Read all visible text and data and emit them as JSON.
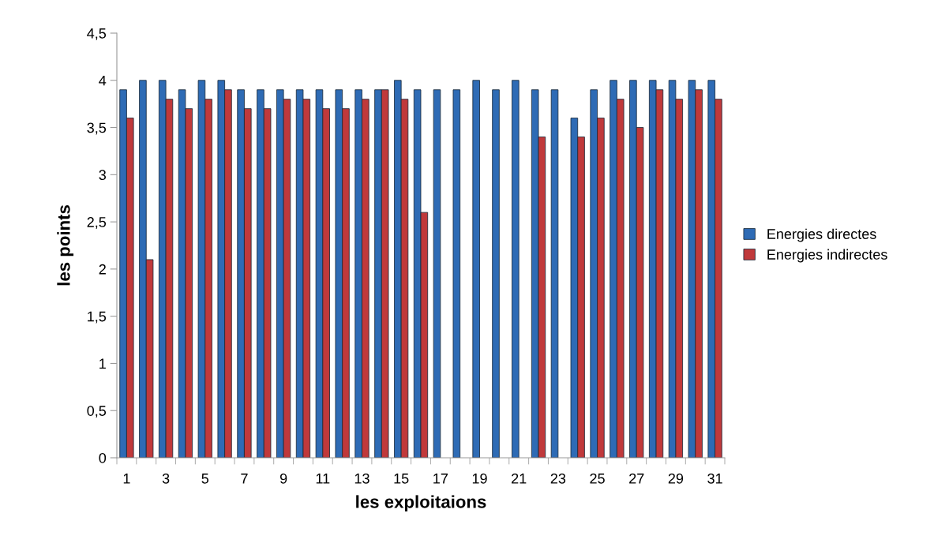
{
  "chart_data": {
    "type": "bar",
    "xlabel": "les exploitaions",
    "ylabel": "les points",
    "categories": [
      "1",
      null,
      "3",
      null,
      "5",
      null,
      "7",
      null,
      "9",
      null,
      "11",
      null,
      "13",
      null,
      "15",
      null,
      "17",
      null,
      "19",
      null,
      "21",
      null,
      "23",
      null,
      "25",
      null,
      "27",
      null,
      "29",
      null,
      "31"
    ],
    "series": [
      {
        "name": "Energies directes",
        "color": "#2e6bb5",
        "values": [
          3.9,
          4.0,
          4.0,
          3.9,
          4.0,
          4.0,
          3.9,
          3.9,
          3.9,
          3.9,
          3.9,
          3.9,
          3.9,
          3.9,
          4.0,
          3.9,
          3.9,
          3.9,
          4.0,
          3.9,
          4.0,
          3.9,
          3.9,
          3.6,
          3.9,
          4.0,
          4.0,
          4.0,
          4.0,
          4.0,
          4.0
        ]
      },
      {
        "name": "Energies indirectes",
        "color": "#c0393b",
        "values": [
          3.6,
          2.1,
          3.8,
          3.7,
          3.8,
          3.9,
          3.7,
          3.7,
          3.8,
          3.8,
          3.7,
          3.7,
          3.8,
          3.9,
          3.8,
          2.6,
          null,
          null,
          null,
          null,
          null,
          3.4,
          null,
          3.4,
          3.6,
          3.8,
          3.5,
          3.9,
          3.8,
          3.9,
          3.8
        ]
      }
    ],
    "ylim": [
      0,
      4.5
    ],
    "yticks": [
      0,
      {
        "value": 0.5,
        "label": "0,5"
      },
      1,
      {
        "value": 1.5,
        "label": "1,5"
      },
      2,
      {
        "value": 2.5,
        "label": "2,5"
      },
      3,
      {
        "value": 3.5,
        "label": "3,5"
      },
      4,
      {
        "value": 4.5,
        "label": "4,5"
      }
    ],
    "grid": false,
    "legend": "right"
  }
}
